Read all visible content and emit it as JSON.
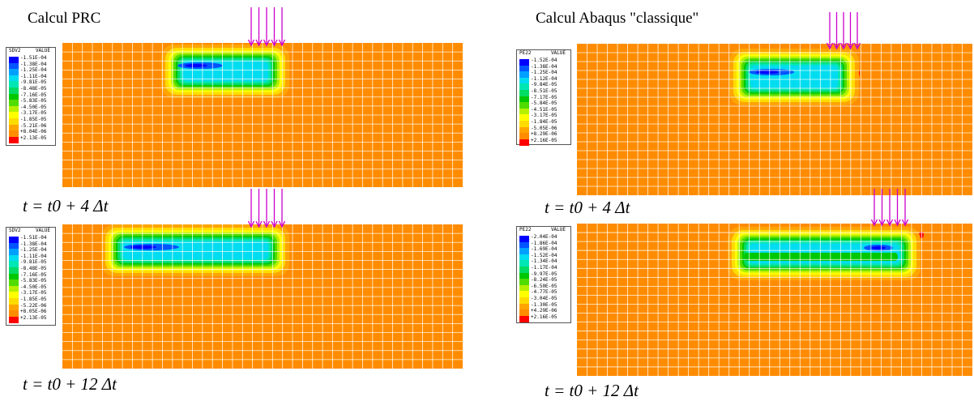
{
  "titles": {
    "left": "Calcul PRC",
    "right": "Calcul Abaqus \"classique\""
  },
  "times": {
    "t4": "t = t0 + 4 Δt",
    "t12": "t = t0 + 12 Δt"
  },
  "colors": {
    "mesh_background": "#ff8c00",
    "grid_lines": "#ffffff",
    "arrow": "#cc00cc",
    "scale": [
      "#0000ff",
      "#0055ff",
      "#00a0ff",
      "#00dcf0",
      "#00e6b4",
      "#00dc64",
      "#00c800",
      "#50dc00",
      "#b4f000",
      "#ffff00",
      "#ffdc00",
      "#ffa500",
      "#ff8c00",
      "#ff0000"
    ]
  },
  "panels": {
    "prc_4": {
      "legend": {
        "variable": "SDV2",
        "unit": "VALUE",
        "values": [
          "-1.51E-04",
          "-1.38E-04",
          "-1.25E-04",
          "-1.11E-04",
          "-9.81E-05",
          "-8.48E-05",
          "-7.16E-05",
          "-5.83E-05",
          "-4.50E-05",
          "-3.17E-05",
          "-1.85E-05",
          "-5.21E-06",
          "+8.04E-06",
          "+2.13E-05"
        ]
      }
    },
    "prc_12": {
      "legend": {
        "variable": "SDV2",
        "unit": "VALUE",
        "values": [
          "-1.51E-04",
          "-1.38E-04",
          "-1.25E-04",
          "-1.11E-04",
          "-9.81E-05",
          "-8.48E-05",
          "-7.16E-05",
          "-5.83E-05",
          "-4.50E-05",
          "-3.17E-05",
          "-1.85E-05",
          "-5.22E-06",
          "+8.05E-06",
          "+2.13E-05"
        ]
      }
    },
    "abq_4": {
      "legend": {
        "variable": "PE22",
        "unit": "VALUE",
        "values": [
          "-1.52E-04",
          "-1.38E-04",
          "-1.25E-04",
          "-1.12E-04",
          "-9.84E-05",
          "-8.51E-05",
          "-7.17E-05",
          "-5.84E-05",
          "-4.51E-05",
          "-3.17E-05",
          "-1.84E-05",
          "-5.05E-06",
          "+8.29E-06",
          "+2.16E-05"
        ]
      }
    },
    "abq_12": {
      "legend": {
        "variable": "PE22",
        "unit": "VALUE",
        "values": [
          "-2.04E-04",
          "-1.86E-04",
          "-1.69E-04",
          "-1.52E-04",
          "-1.34E-04",
          "-1.17E-04",
          "-9.97E-05",
          "-8.24E-05",
          "-6.50E-05",
          "-4.77E-05",
          "-3.04E-05",
          "-1.30E-05",
          "+4.29E-06",
          "+2.16E-05"
        ]
      }
    }
  }
}
